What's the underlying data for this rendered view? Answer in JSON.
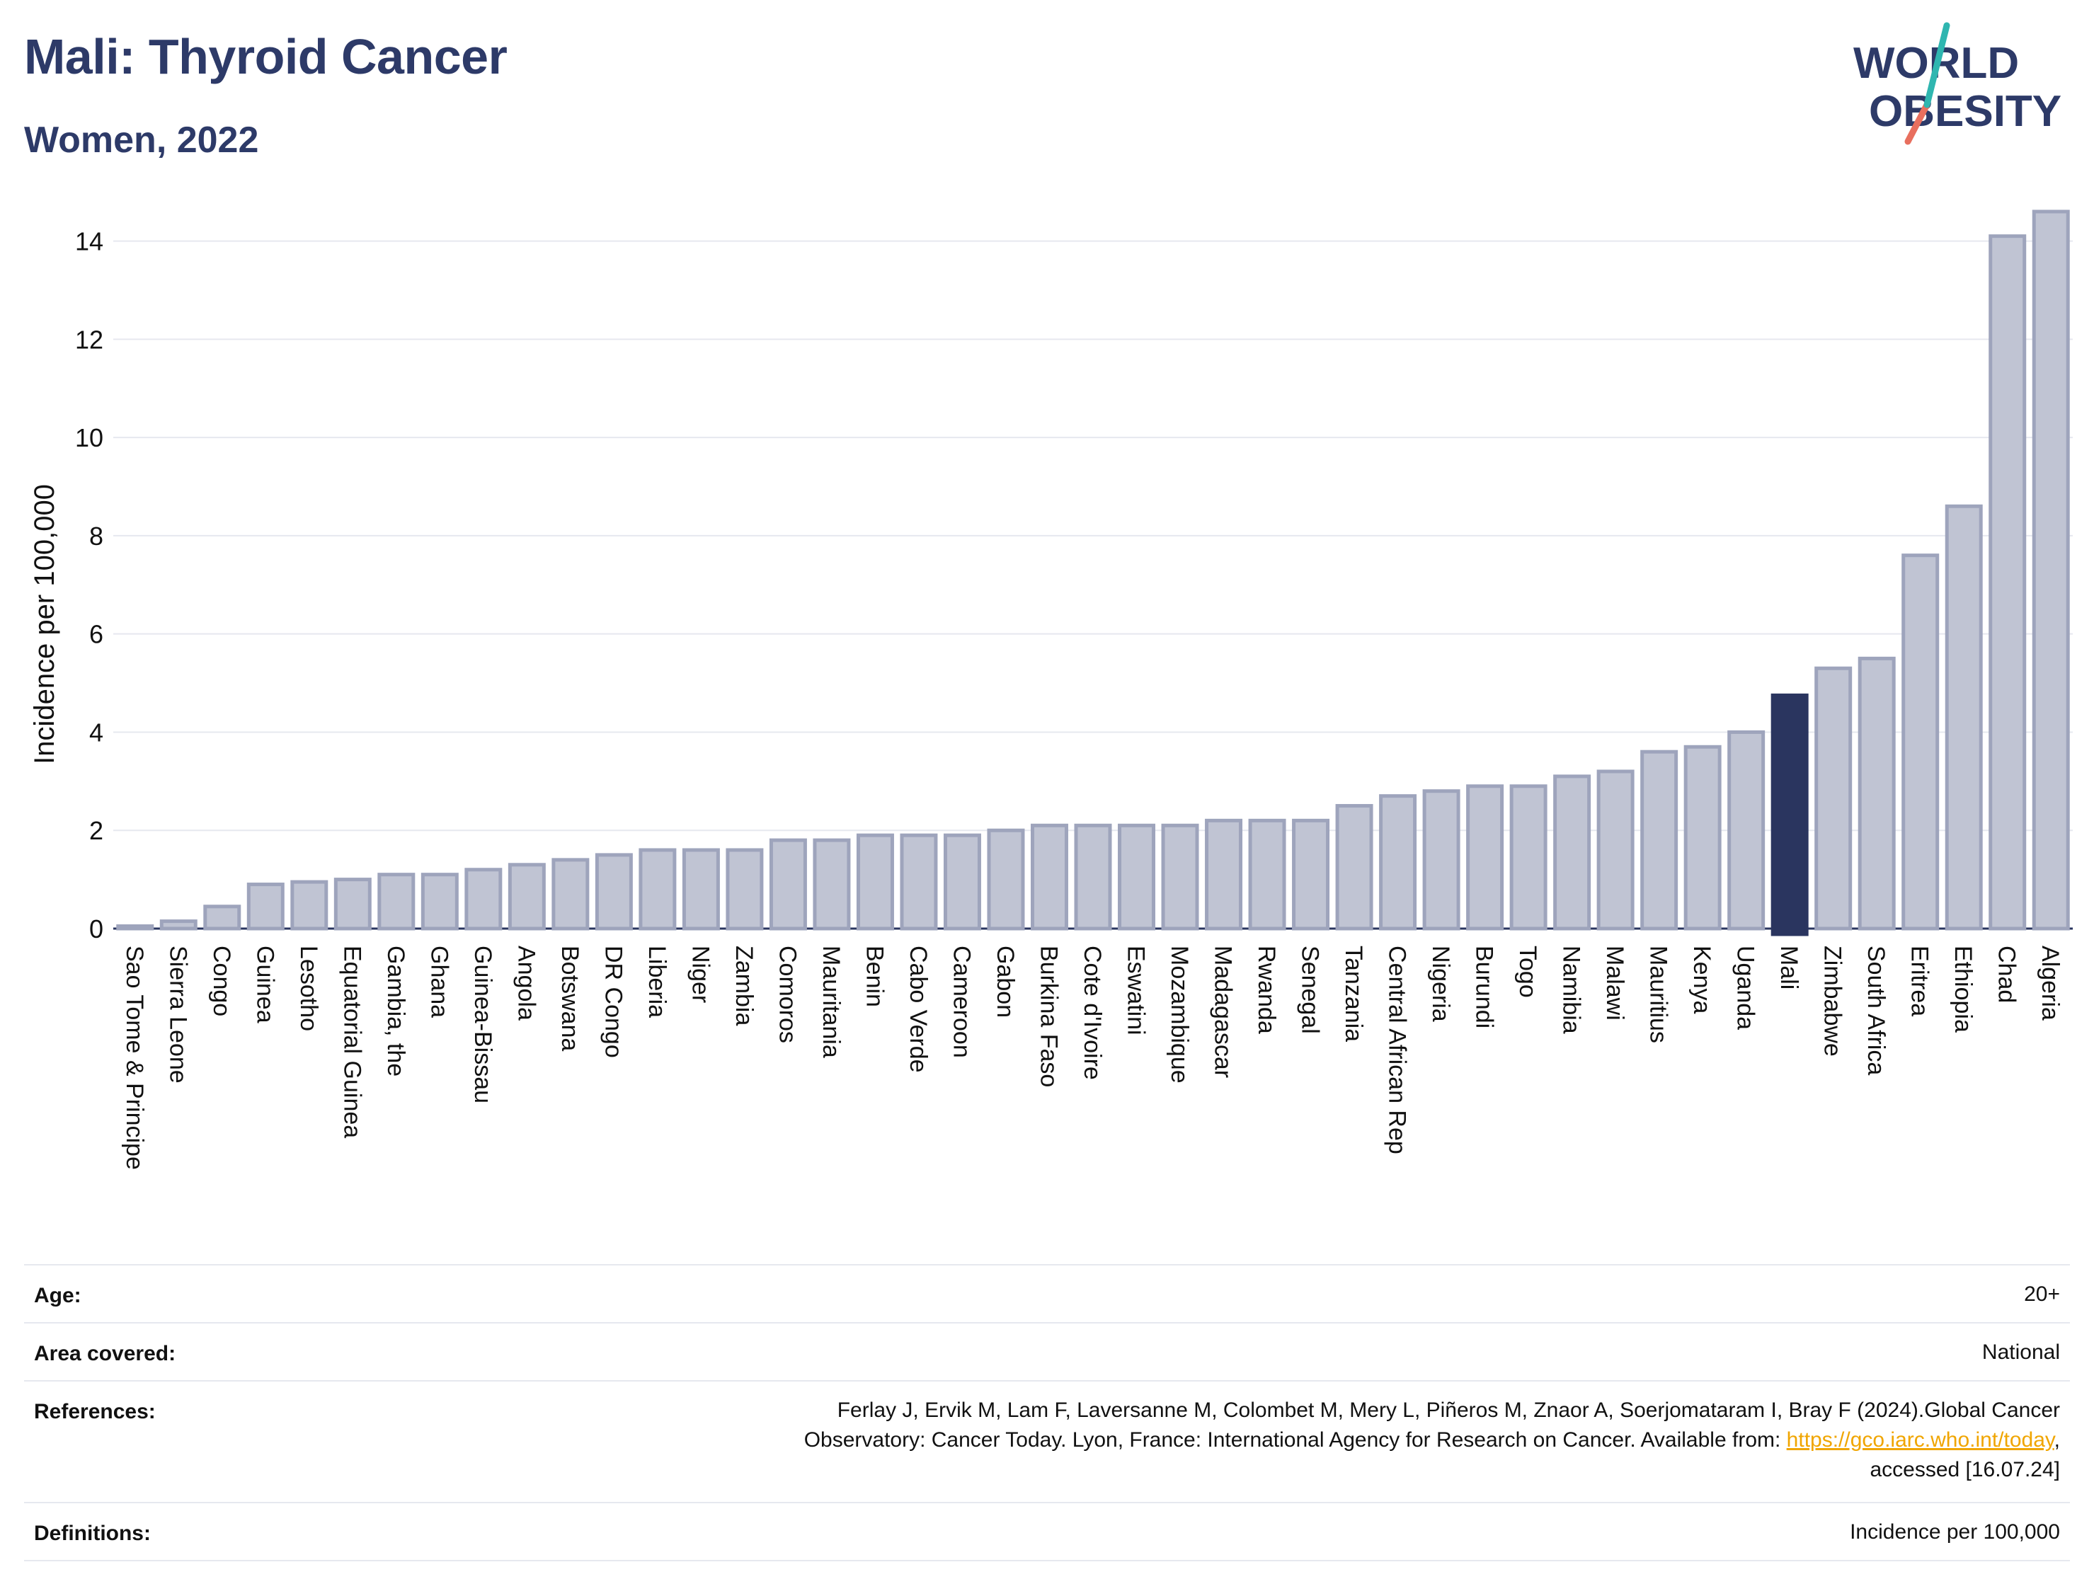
{
  "header": {
    "title": "Mali: Thyroid Cancer",
    "subtitle": "Women, 2022",
    "logo_line1": "WORLD",
    "logo_line2": "OBESITY"
  },
  "chart_data": {
    "type": "bar",
    "ylabel": "Incidence per 100,000",
    "xlabel": "",
    "ylim": [
      0,
      14.7
    ],
    "yticks": [
      0,
      2,
      4,
      6,
      8,
      10,
      12,
      14
    ],
    "grid": true,
    "highlight": "Mali",
    "categories": [
      "Sao Tome & Principe",
      "Sierra Leone",
      "Congo",
      "Guinea",
      "Lesotho",
      "Equatorial Guinea",
      "Gambia, the",
      "Ghana",
      "Guinea-Bissau",
      "Angola",
      "Botswana",
      "DR Congo",
      "Liberia",
      "Niger",
      "Zambia",
      "Comoros",
      "Mauritania",
      "Benin",
      "Cabo Verde",
      "Cameroon",
      "Gabon",
      "Burkina Faso",
      "Cote d'Ivoire",
      "Eswatini",
      "Mozambique",
      "Madagascar",
      "Rwanda",
      "Senegal",
      "Tanzania",
      "Central African Rep",
      "Nigeria",
      "Burundi",
      "Togo",
      "Namibia",
      "Malawi",
      "Mauritius",
      "Kenya",
      "Uganda",
      "Mali",
      "Zimbabwe",
      "South Africa",
      "Eritrea",
      "Ethiopia",
      "Chad",
      "Algeria"
    ],
    "values": [
      0.05,
      0.15,
      0.45,
      0.9,
      0.95,
      1.0,
      1.1,
      1.1,
      1.2,
      1.3,
      1.4,
      1.5,
      1.6,
      1.6,
      1.6,
      1.8,
      1.8,
      1.9,
      1.9,
      1.9,
      2.0,
      2.1,
      2.1,
      2.1,
      2.1,
      2.2,
      2.2,
      2.2,
      2.5,
      2.7,
      2.8,
      2.9,
      2.9,
      3.1,
      3.2,
      3.6,
      3.7,
      4.0,
      4.75,
      5.3,
      5.5,
      7.6,
      8.6,
      14.1,
      14.6
    ],
    "colors": {
      "bar": "#c0c4d3",
      "bar_edge": "#9ea4bc",
      "highlight": "#2a355f"
    }
  },
  "meta": {
    "age_label": "Age:",
    "age_value": "20+",
    "area_label": "Area covered:",
    "area_value": "National",
    "ref_label": "References:",
    "ref_line1": "Ferlay J, Ervik M, Lam F, Laversanne M, Colombet M, Mery L, Piñeros M, Znaor A, Soerjomataram I, Bray F (2024).Global Cancer",
    "ref_line2": "Observatory: Cancer Today. Lyon, France: International Agency for Research on Cancer. Available from: ",
    "ref_link": "https://gco.iarc.who.int/today",
    "ref_line2_end": ",",
    "ref_line3": "accessed [16.07.24]",
    "def_label": "Definitions:",
    "def_value": "Incidence per 100,000"
  }
}
